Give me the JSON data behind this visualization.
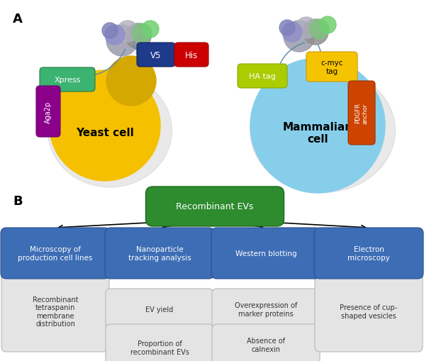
{
  "bg_color": "#ffffff",
  "yeast_cell_color": "#f5c000",
  "yeast_bud_color": "#d4a800",
  "yeast_label": "Yeast cell",
  "mammalian_cell_color": "#87CEEB",
  "mammalian_label": "Mammalian\ncell",
  "shadow_color": "#cccccc",
  "tag_xpress_color": "#3cb371",
  "tag_aga2p_color": "#8b008b",
  "tag_v5_color": "#1e3a8a",
  "tag_his_color": "#cc0000",
  "tag_ha_color": "#aacc00",
  "tag_cmyc_color": "#f5c400",
  "tag_pdgfr_color": "#cc4400",
  "recombinant_evs_color": "#2e8b2e",
  "recombinant_evs_label": "Recombinant EVs",
  "blue_box_color": "#3d6db5",
  "blue_box_edge": "#2a5090",
  "gray_box_color": "#e4e4e4",
  "gray_box_edge": "#b8b8b8",
  "gray_text_color": "#333333",
  "white_text": "#ffffff",
  "black_text": "#000000",
  "arrow_color": "#000000",
  "protein_arrow_color": "#5588aa"
}
